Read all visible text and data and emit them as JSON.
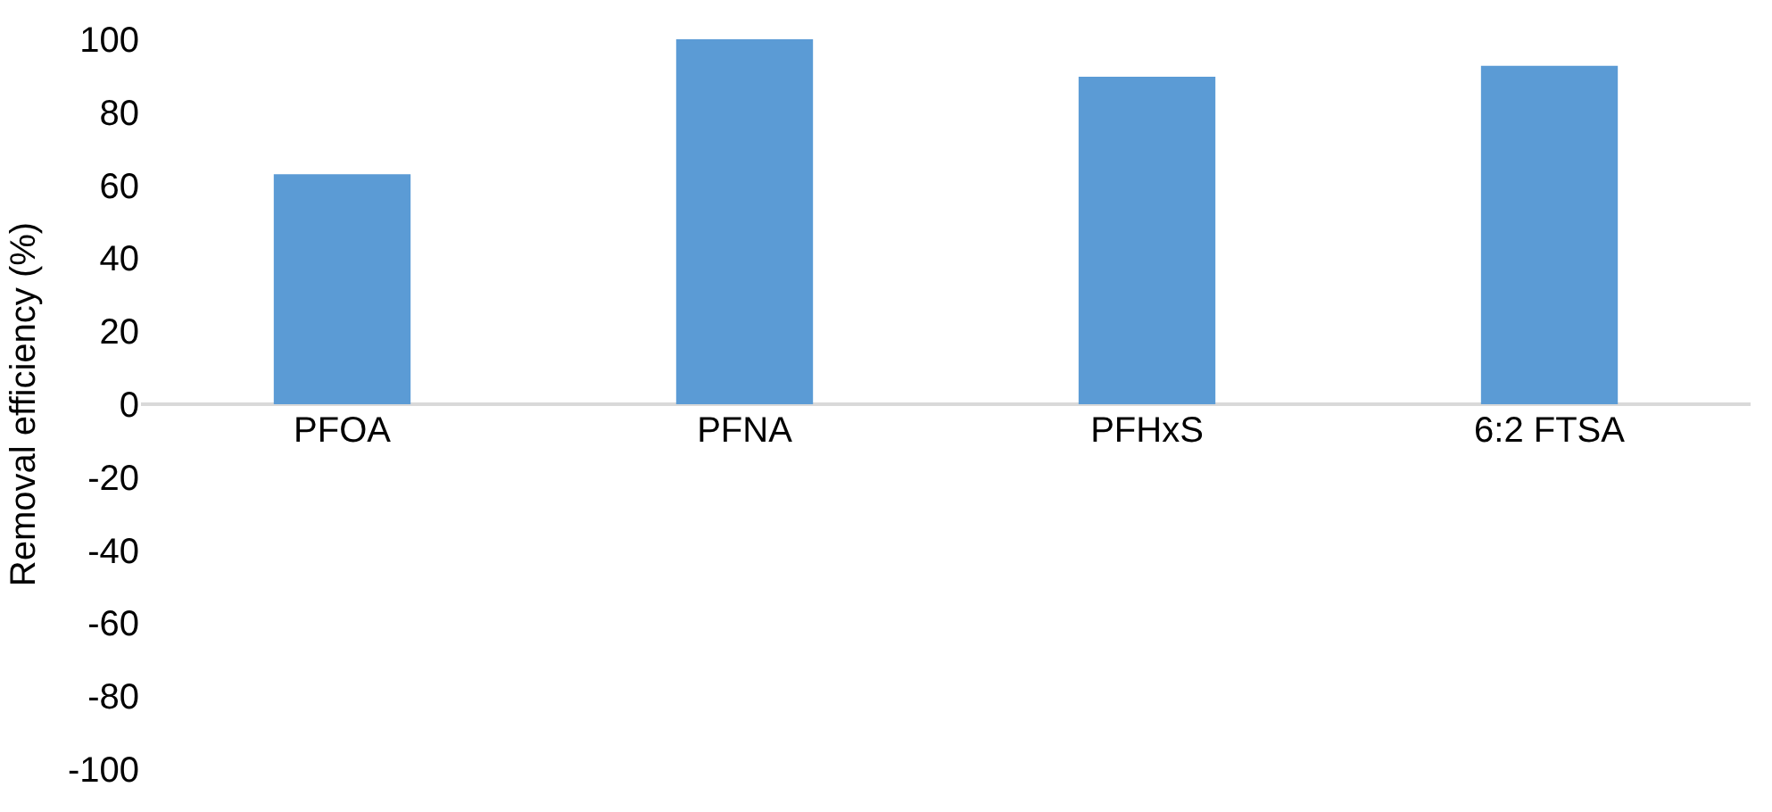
{
  "chart_data": {
    "type": "bar",
    "ylabel": "Removal efficiency (%)",
    "categories": [
      "PFOA",
      "PFNA",
      "PFHxS",
      "6:2 FTSA"
    ],
    "values": [
      63,
      100,
      89.7,
      92.7
    ],
    "color": "#5b9bd5",
    "ylim": [
      -100,
      100
    ],
    "yticks": [
      -100,
      -80,
      -60,
      -40,
      -20,
      0,
      20,
      40,
      60,
      80,
      100
    ]
  }
}
